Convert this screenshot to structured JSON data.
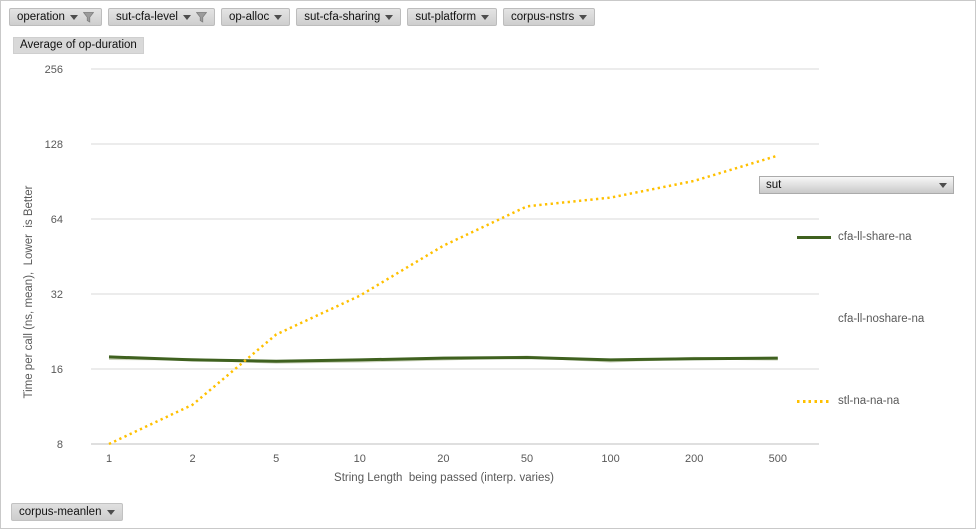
{
  "filters": {
    "items": [
      {
        "label": "operation",
        "filtered": true
      },
      {
        "label": "sut-cfa-level",
        "filtered": true
      },
      {
        "label": "op-alloc",
        "filtered": false
      },
      {
        "label": "sut-cfa-sharing",
        "filtered": false
      },
      {
        "label": "sut-platform",
        "filtered": false
      },
      {
        "label": "corpus-nstrs",
        "filtered": false
      }
    ]
  },
  "value_button": {
    "label": "Average of op-duration"
  },
  "bottom_filter": {
    "label": "corpus-meanlen"
  },
  "legend": {
    "field_label": "sut",
    "entries": [
      {
        "label": "cfa-ll-share-na",
        "swatch": "solid-green"
      },
      {
        "label": "cfa-ll-noshare-na",
        "swatch": "none"
      },
      {
        "label": "stl-na-na-na",
        "swatch": "dotted-yellow"
      }
    ]
  },
  "colors": {
    "green_series": "#3f611f",
    "light_series": "#ccd3bd",
    "yellow_series": "#ffc000",
    "gridline": "#d9d9d9",
    "axis_line": "#bfbfbf",
    "tick_text": "#595959"
  },
  "chart_data": {
    "type": "line",
    "title": "Average of op-duration",
    "xlabel": "String Length  being passed (interp. varies)",
    "ylabel": "Time per call (ns, mean),  Lower  is Better",
    "x_categories": [
      "1",
      "2",
      "5",
      "10",
      "20",
      "50",
      "100",
      "200",
      "500"
    ],
    "y_ticks": [
      256,
      128,
      64,
      32,
      16,
      8
    ],
    "y_scale": "log2",
    "ylim": [
      8,
      256
    ],
    "grid": "horizontal",
    "legend_position": "right",
    "series": [
      {
        "name": "cfa-ll-noshare-na",
        "color": "#ccd3bd",
        "style": "solid",
        "width": 2.5,
        "values": [
          17.6,
          17.5,
          17.0,
          17.2,
          17.5,
          17.9,
          17.2,
          17.7,
          17.5
        ]
      },
      {
        "name": "cfa-ll-share-na",
        "color": "#3f611f",
        "style": "solid",
        "width": 3,
        "values": [
          17.9,
          17.4,
          17.2,
          17.4,
          17.7,
          17.8,
          17.4,
          17.6,
          17.7
        ]
      },
      {
        "name": "stl-na-na-na",
        "color": "#ffc000",
        "style": "dotted",
        "width": 2.5,
        "values": [
          8,
          11.5,
          22,
          31.5,
          50,
          72,
          78,
          91,
          115
        ]
      }
    ]
  }
}
